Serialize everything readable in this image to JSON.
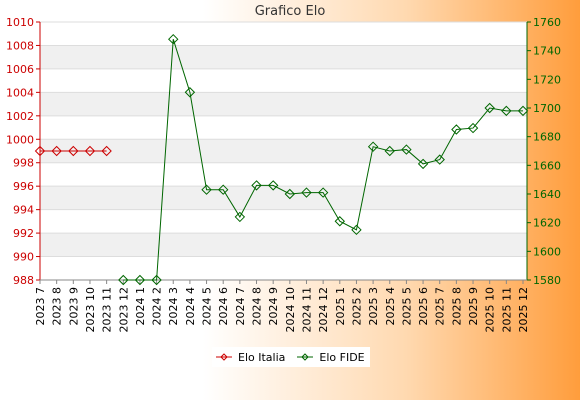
{
  "chart_data": {
    "type": "line",
    "title": "Grafico Elo",
    "categories": [
      "2023 7",
      "2023 8",
      "2023 9",
      "2023 10",
      "2023 11",
      "2023 12",
      "2024 1",
      "2024 2",
      "2024 3",
      "2024 4",
      "2024 5",
      "2024 6",
      "2024 7",
      "2024 8",
      "2024 9",
      "2024 10",
      "2024 11",
      "2024 12",
      "2025 1",
      "2025 2",
      "2025 3",
      "2025 4",
      "2025 5",
      "2025 6",
      "2025 7",
      "2025 8",
      "2025 9",
      "2025 10",
      "2025 11",
      "2025 12"
    ],
    "y_left": {
      "min": 988,
      "max": 1010,
      "ticks": [
        988,
        990,
        992,
        994,
        996,
        998,
        1000,
        1002,
        1004,
        1006,
        1008,
        1010
      ],
      "color": "#cc0000"
    },
    "y_right": {
      "min": 1580,
      "max": 1760,
      "ticks": [
        1580,
        1600,
        1620,
        1640,
        1660,
        1680,
        1700,
        1720,
        1740,
        1760
      ],
      "color": "#006600"
    },
    "grid": true,
    "legend_position": "bottom",
    "series": [
      {
        "name": "Elo Italia",
        "axis": "left",
        "color": "#cc0000",
        "values": [
          999,
          999,
          999,
          999,
          999,
          null,
          null,
          null,
          null,
          null,
          null,
          null,
          null,
          null,
          null,
          null,
          null,
          null,
          null,
          null,
          null,
          null,
          null,
          null,
          null,
          null,
          null,
          null,
          null,
          null
        ]
      },
      {
        "name": "Elo FIDE",
        "axis": "right",
        "color": "#006600",
        "values": [
          null,
          null,
          null,
          null,
          null,
          1580,
          1580,
          1580,
          1748,
          1711,
          1643,
          1643,
          1624,
          1646,
          1646,
          1640,
          1641,
          1641,
          1621,
          1615,
          1673,
          1670,
          1671,
          1661,
          1664,
          1685,
          1686,
          1700,
          1698,
          1698
        ]
      }
    ]
  }
}
